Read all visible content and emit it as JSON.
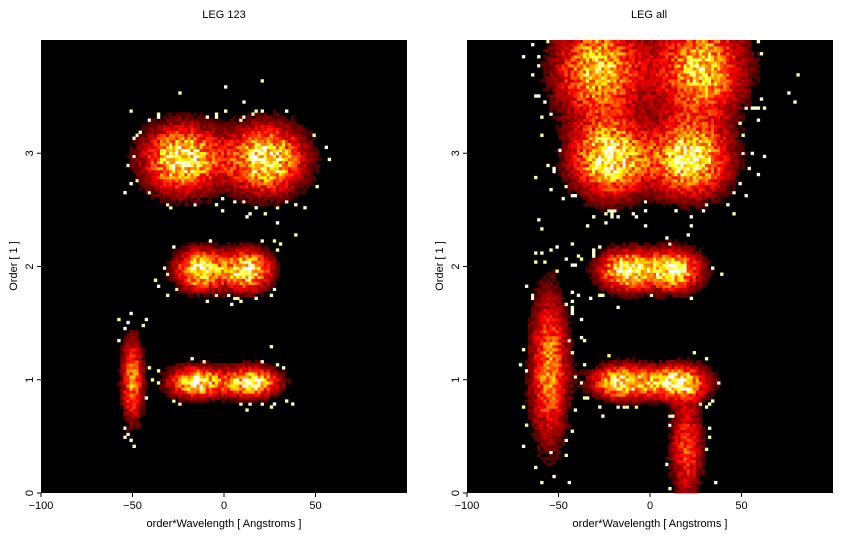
{
  "chart_data": [
    {
      "type": "heatmap",
      "title": "LEG 123",
      "xlabel": "order*Wavelength [ Angstroms ]",
      "ylabel": "Order [ 1 ]",
      "xlim": [
        -100,
        100
      ],
      "ylim": [
        0,
        4
      ],
      "xticks": [
        -100,
        -50,
        0,
        50
      ],
      "yticks": [
        0,
        1,
        2,
        3
      ],
      "colormap": "hot",
      "background": "#000000",
      "blobs": [
        {
          "x": -50,
          "y": 1.0,
          "sx": 4,
          "sy": 0.25,
          "amp": 0.7
        },
        {
          "x": -15,
          "y": 0.98,
          "sx": 10,
          "sy": 0.09,
          "amp": 1.0
        },
        {
          "x": 15,
          "y": 0.98,
          "sx": 10,
          "sy": 0.09,
          "amp": 1.0
        },
        {
          "x": -13,
          "y": 1.97,
          "sx": 9,
          "sy": 0.12,
          "amp": 1.0
        },
        {
          "x": 13,
          "y": 1.97,
          "sx": 9,
          "sy": 0.12,
          "amp": 1.0
        },
        {
          "x": -23,
          "y": 2.95,
          "sx": 14,
          "sy": 0.2,
          "amp": 1.0
        },
        {
          "x": 23,
          "y": 2.95,
          "sx": 14,
          "sy": 0.2,
          "amp": 1.0
        }
      ]
    },
    {
      "type": "heatmap",
      "title": "LEG all",
      "xlabel": "order*Wavelength [ Angstroms ]",
      "ylabel": "Order [ 1 ]",
      "xlim": [
        -100,
        100
      ],
      "ylim": [
        0,
        4
      ],
      "xticks": [
        -100,
        -50,
        0,
        50
      ],
      "yticks": [
        0,
        1,
        2,
        3
      ],
      "colormap": "hot",
      "background": "#000000",
      "blobs": [
        {
          "x": -55,
          "y": 1.1,
          "sx": 7,
          "sy": 0.45,
          "amp": 0.7
        },
        {
          "x": -15,
          "y": 0.98,
          "sx": 11,
          "sy": 0.1,
          "amp": 1.0
        },
        {
          "x": 15,
          "y": 0.98,
          "sx": 11,
          "sy": 0.1,
          "amp": 1.0
        },
        {
          "x": -13,
          "y": 1.97,
          "sx": 10,
          "sy": 0.12,
          "amp": 1.0
        },
        {
          "x": 13,
          "y": 1.97,
          "sx": 10,
          "sy": 0.12,
          "amp": 1.0
        },
        {
          "x": -22,
          "y": 2.95,
          "sx": 14,
          "sy": 0.22,
          "amp": 1.0
        },
        {
          "x": 22,
          "y": 2.95,
          "sx": 14,
          "sy": 0.22,
          "amp": 1.0
        },
        {
          "x": -28,
          "y": 3.75,
          "sx": 16,
          "sy": 0.3,
          "amp": 0.85
        },
        {
          "x": 28,
          "y": 3.75,
          "sx": 16,
          "sy": 0.3,
          "amp": 0.85
        },
        {
          "x": 20,
          "y": 0.4,
          "sx": 6,
          "sy": 0.3,
          "amp": 0.55
        }
      ]
    }
  ]
}
